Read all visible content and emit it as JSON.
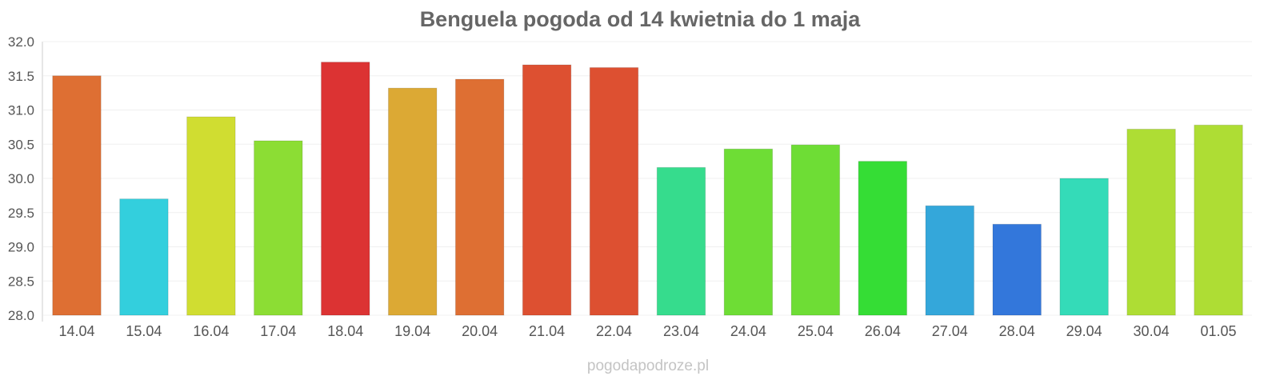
{
  "chart_data": {
    "type": "bar",
    "title": "Benguela pogoda od 14 kwietnia do 1 maja",
    "xlabel": "",
    "ylabel": "",
    "categories": [
      "14.04",
      "15.04",
      "16.04",
      "17.04",
      "18.04",
      "19.04",
      "20.04",
      "21.04",
      "22.04",
      "23.04",
      "24.04",
      "25.04",
      "26.04",
      "27.04",
      "28.04",
      "29.04",
      "30.04",
      "01.05"
    ],
    "values": [
      31.5,
      29.7,
      30.9,
      30.55,
      31.7,
      31.32,
      31.45,
      31.66,
      31.62,
      30.16,
      30.43,
      30.49,
      30.25,
      29.6,
      29.33,
      30.0,
      30.72,
      30.78
    ],
    "colors": [
      "#de6f33",
      "#33cfdd",
      "#d0dd31",
      "#8cdd34",
      "#dc3333",
      "#dca934",
      "#de6f33",
      "#dd5031",
      "#dd5031",
      "#36dc8d",
      "#6edd35",
      "#6edd35",
      "#35dd35",
      "#34a7da",
      "#3377db",
      "#34dbb8",
      "#aedd34",
      "#aedd34"
    ],
    "ylim": [
      28.0,
      32.0
    ],
    "yticks": [
      "28.0",
      "28.5",
      "29.0",
      "29.5",
      "30.0",
      "30.5",
      "31.0",
      "31.5",
      "32.0"
    ],
    "grid": true,
    "legend": "none"
  },
  "watermark": "pogodapodroze.pl"
}
